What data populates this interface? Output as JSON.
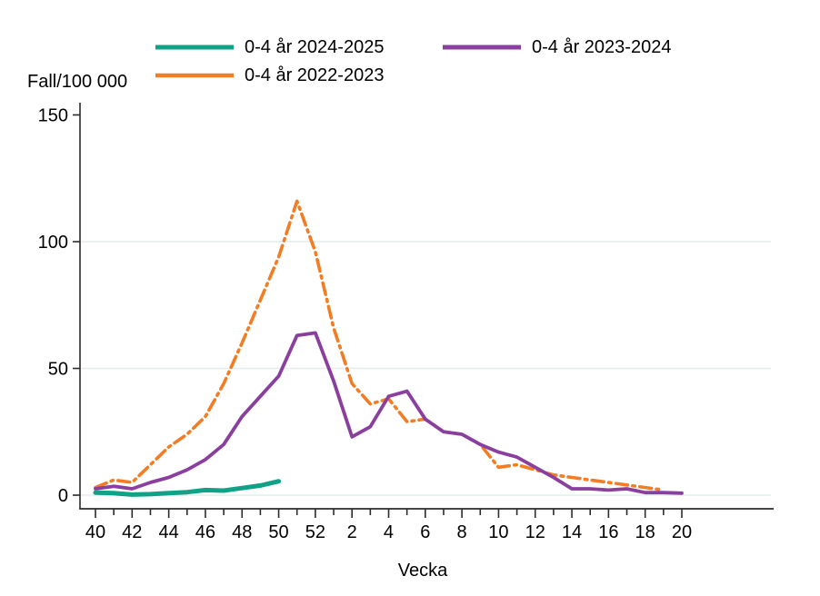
{
  "ylabel_text": "Fall/100 000",
  "xlabel_text": "Vecka",
  "colors": {
    "teal": "#10a287",
    "purple": "#8a3f9f",
    "orange": "#f27d24",
    "grid": "#e6edee",
    "axis": "#2b2b2b",
    "text": "#000000"
  },
  "legend": [
    {
      "label": "0-4 år 2024-2025",
      "color": "#10a287",
      "dasharray": ""
    },
    {
      "label": "0-4 år 2023-2024",
      "color": "#8a3f9f",
      "dasharray": ""
    },
    {
      "label": "0-4 år 2022-2023",
      "color": "#f27d24",
      "dasharray": "15 6 3 6"
    }
  ],
  "chart_data": {
    "type": "line",
    "title": "",
    "ylabel": "Fall/100 000",
    "xlabel": "Vecka",
    "ylim": [
      0,
      150
    ],
    "yticks": [
      0,
      50,
      100,
      150
    ],
    "gridlines_at": [
      0,
      50,
      100
    ],
    "grid": true,
    "legend_position": "top",
    "weeks": [
      "40",
      "41",
      "42",
      "43",
      "44",
      "45",
      "46",
      "47",
      "48",
      "49",
      "50",
      "51",
      "52",
      "1",
      "2",
      "3",
      "4",
      "5",
      "6",
      "7",
      "8",
      "9",
      "10",
      "11",
      "12",
      "13",
      "14",
      "15",
      "16",
      "17",
      "18",
      "19",
      "20"
    ],
    "labeled_week_ticks": [
      "40",
      "42",
      "44",
      "46",
      "48",
      "50",
      "52",
      "2",
      "4",
      "6",
      "8",
      "10",
      "12",
      "14",
      "16",
      "18",
      "20"
    ],
    "series": [
      {
        "name": "0-4 år 2022-2023",
        "color": "#f27d24",
        "dash": "dashdot",
        "width": 3.6,
        "start_week_index": 0,
        "values": [
          3,
          6,
          5,
          12,
          19,
          24,
          31,
          44,
          60,
          77,
          94,
          116,
          96,
          66,
          44,
          36,
          38,
          29,
          30,
          25,
          24,
          20,
          11,
          12,
          10,
          8,
          7,
          6,
          5,
          4,
          3,
          2
        ]
      },
      {
        "name": "0-4 år 2023-2024",
        "color": "#8a3f9f",
        "dash": "solid",
        "width": 3.8,
        "start_week_index": 0,
        "values": [
          2.5,
          3.5,
          2.5,
          5,
          7,
          10,
          14,
          20,
          31,
          39,
          47,
          63,
          64,
          45,
          23,
          27,
          39,
          41,
          30,
          25,
          24,
          20,
          17,
          15,
          11,
          7,
          2.5,
          2.5,
          2,
          2.5,
          1,
          1,
          0.8
        ]
      },
      {
        "name": "0-4 år 2024-2025",
        "color": "#10a287",
        "dash": "solid",
        "width": 5,
        "start_week_index": 0,
        "values": [
          1,
          0.8,
          0.2,
          0.4,
          0.8,
          1.2,
          2,
          1.8,
          2.8,
          3.8,
          5.5
        ]
      }
    ]
  }
}
